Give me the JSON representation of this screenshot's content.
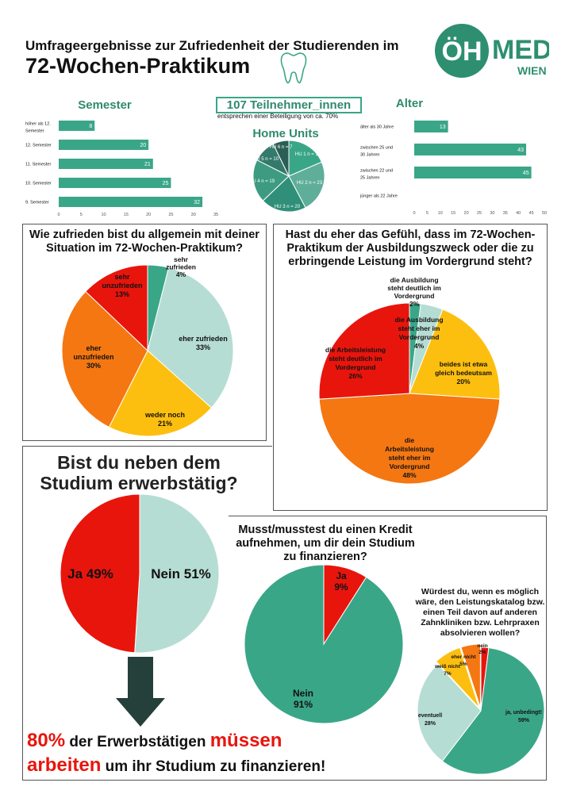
{
  "header": {
    "line1": "Umfrageergebnisse zur Zufriedenheit der Studierenden im",
    "line2": "72-Wochen-Praktikum"
  },
  "logo": {
    "letters": "ÖH",
    "word": "MED",
    "city": "WIEN"
  },
  "colors": {
    "teal": "#3aa688",
    "teal_dark": "#2b6d5e",
    "mint": "#b6ddd3",
    "yellow": "#fdbf0f",
    "orange": "#f47712",
    "red": "#e8150d",
    "title_green": "#2f8a6b"
  },
  "participants": {
    "main": "107 Teilnehmer_innen",
    "sub": "entsprechen einer Beteiligung von ca. 70%"
  },
  "chart_data": [
    {
      "id": "semester",
      "type": "bar",
      "orientation": "horizontal",
      "title": "Semester",
      "categories": [
        "höher als 12. Semester",
        "12. Semester",
        "11. Semester",
        "10. Semester",
        "9. Semester"
      ],
      "values": [
        8,
        20,
        21,
        25,
        32
      ],
      "xlim": [
        0,
        35
      ],
      "xticks": [
        "0",
        "5",
        "10",
        "15",
        "20",
        "25",
        "30",
        "35"
      ]
    },
    {
      "id": "alter",
      "type": "bar",
      "orientation": "horizontal",
      "title": "Alter",
      "categories": [
        "älter als 30 Jahre",
        "zwischen 25 und 30 Jahren",
        "zwischen 22 und 25 Jahren",
        "jünger als 22 Jahre"
      ],
      "values": [
        13,
        43,
        45,
        0
      ],
      "xlim": [
        0,
        50
      ],
      "xticks": [
        "0",
        "5",
        "10",
        "15",
        "20",
        "25",
        "30",
        "35",
        "40",
        "45",
        "50"
      ]
    },
    {
      "id": "home_units",
      "type": "pie",
      "title": "Home Units",
      "slices": [
        {
          "label": "HU 1 n = 18",
          "value": 18
        },
        {
          "label": "HU 2 n = 23",
          "value": 23
        },
        {
          "label": "HU 3 n = 20",
          "value": 20
        },
        {
          "label": "HU 4 n = 19",
          "value": 19
        },
        {
          "label": "HU 5 n = 10",
          "value": 10
        },
        {
          "label": "HU 6 n = 7",
          "value": 7
        }
      ]
    },
    {
      "id": "zufriedenheit",
      "type": "pie",
      "title": "Wie zufrieden bist du allgemein mit deiner Situation im 72-Wochen-Praktikum?",
      "slices": [
        {
          "label": "sehr zufrieden",
          "pct": "4%",
          "value": 4
        },
        {
          "label": "eher zufrieden",
          "pct": "33%",
          "value": 33
        },
        {
          "label": "weder noch",
          "pct": "21%",
          "value": 21
        },
        {
          "label": "eher unzufrieden",
          "pct": "30%",
          "value": 30
        },
        {
          "label": "sehr unzufrieden",
          "pct": "13%",
          "value": 13
        }
      ]
    },
    {
      "id": "ausbildungszweck",
      "type": "pie",
      "title": "Hast du eher das Gefühl, dass im 72-Wochen-Praktikum der Ausbildungszweck oder die zu erbringende Leistung im Vordergrund steht?",
      "slices": [
        {
          "label": "die Ausbildung steht deutlich im Vordergrund",
          "pct": "2%",
          "value": 2
        },
        {
          "label": "die Ausbildung steht eher im Vordergrund",
          "pct": "4%",
          "value": 4
        },
        {
          "label": "beides ist etwa gleich bedeutsam",
          "pct": "20%",
          "value": 20
        },
        {
          "label": "die Arbeitsleistung steht eher im Vordergrund",
          "pct": "48%",
          "value": 48
        },
        {
          "label": "die Arbeitsleistung steht deutlich im Vordergrund",
          "pct": "26%",
          "value": 26
        }
      ]
    },
    {
      "id": "erwerbstaetig",
      "type": "pie",
      "title": "Bist du neben dem Studium erwerbstätig?",
      "slices": [
        {
          "label": "Nein",
          "pct": "51%",
          "value": 51
        },
        {
          "label": "Ja",
          "pct": "49%",
          "value": 49
        }
      ]
    },
    {
      "id": "kredit",
      "type": "pie",
      "title": "Musst/musstest du einen Kredit aufnehmen, um dir dein Studium zu finanzieren?",
      "slices": [
        {
          "label": "Ja",
          "pct": "9%",
          "value": 9
        },
        {
          "label": "Nein",
          "pct": "91%",
          "value": 91
        }
      ]
    },
    {
      "id": "zahnkliniken",
      "type": "pie",
      "title": "Würdest du, wenn es möglich wäre, den Leistungskatalog bzw. einen Teil davon auf anderen Zahnkliniken bzw. Lehrpraxen absolvieren wollen?",
      "slices": [
        {
          "label": "nein",
          "pct": "2%",
          "value": 2
        },
        {
          "label": "ja, unbedingt!",
          "pct": "59%",
          "value": 59
        },
        {
          "label": "eventuell",
          "pct": "28%",
          "value": 28
        },
        {
          "label": "weiß nicht",
          "pct": "7%",
          "value": 7
        },
        {
          "label": "eher nicht",
          "pct": "5%",
          "value": 5
        }
      ]
    }
  ],
  "bottom": {
    "pct": "80%",
    "t1": " der Erwerbstätigen ",
    "must": "müssen",
    "work": "arbeiten",
    "t2": " um ihr Studium zu finanzieren!"
  }
}
